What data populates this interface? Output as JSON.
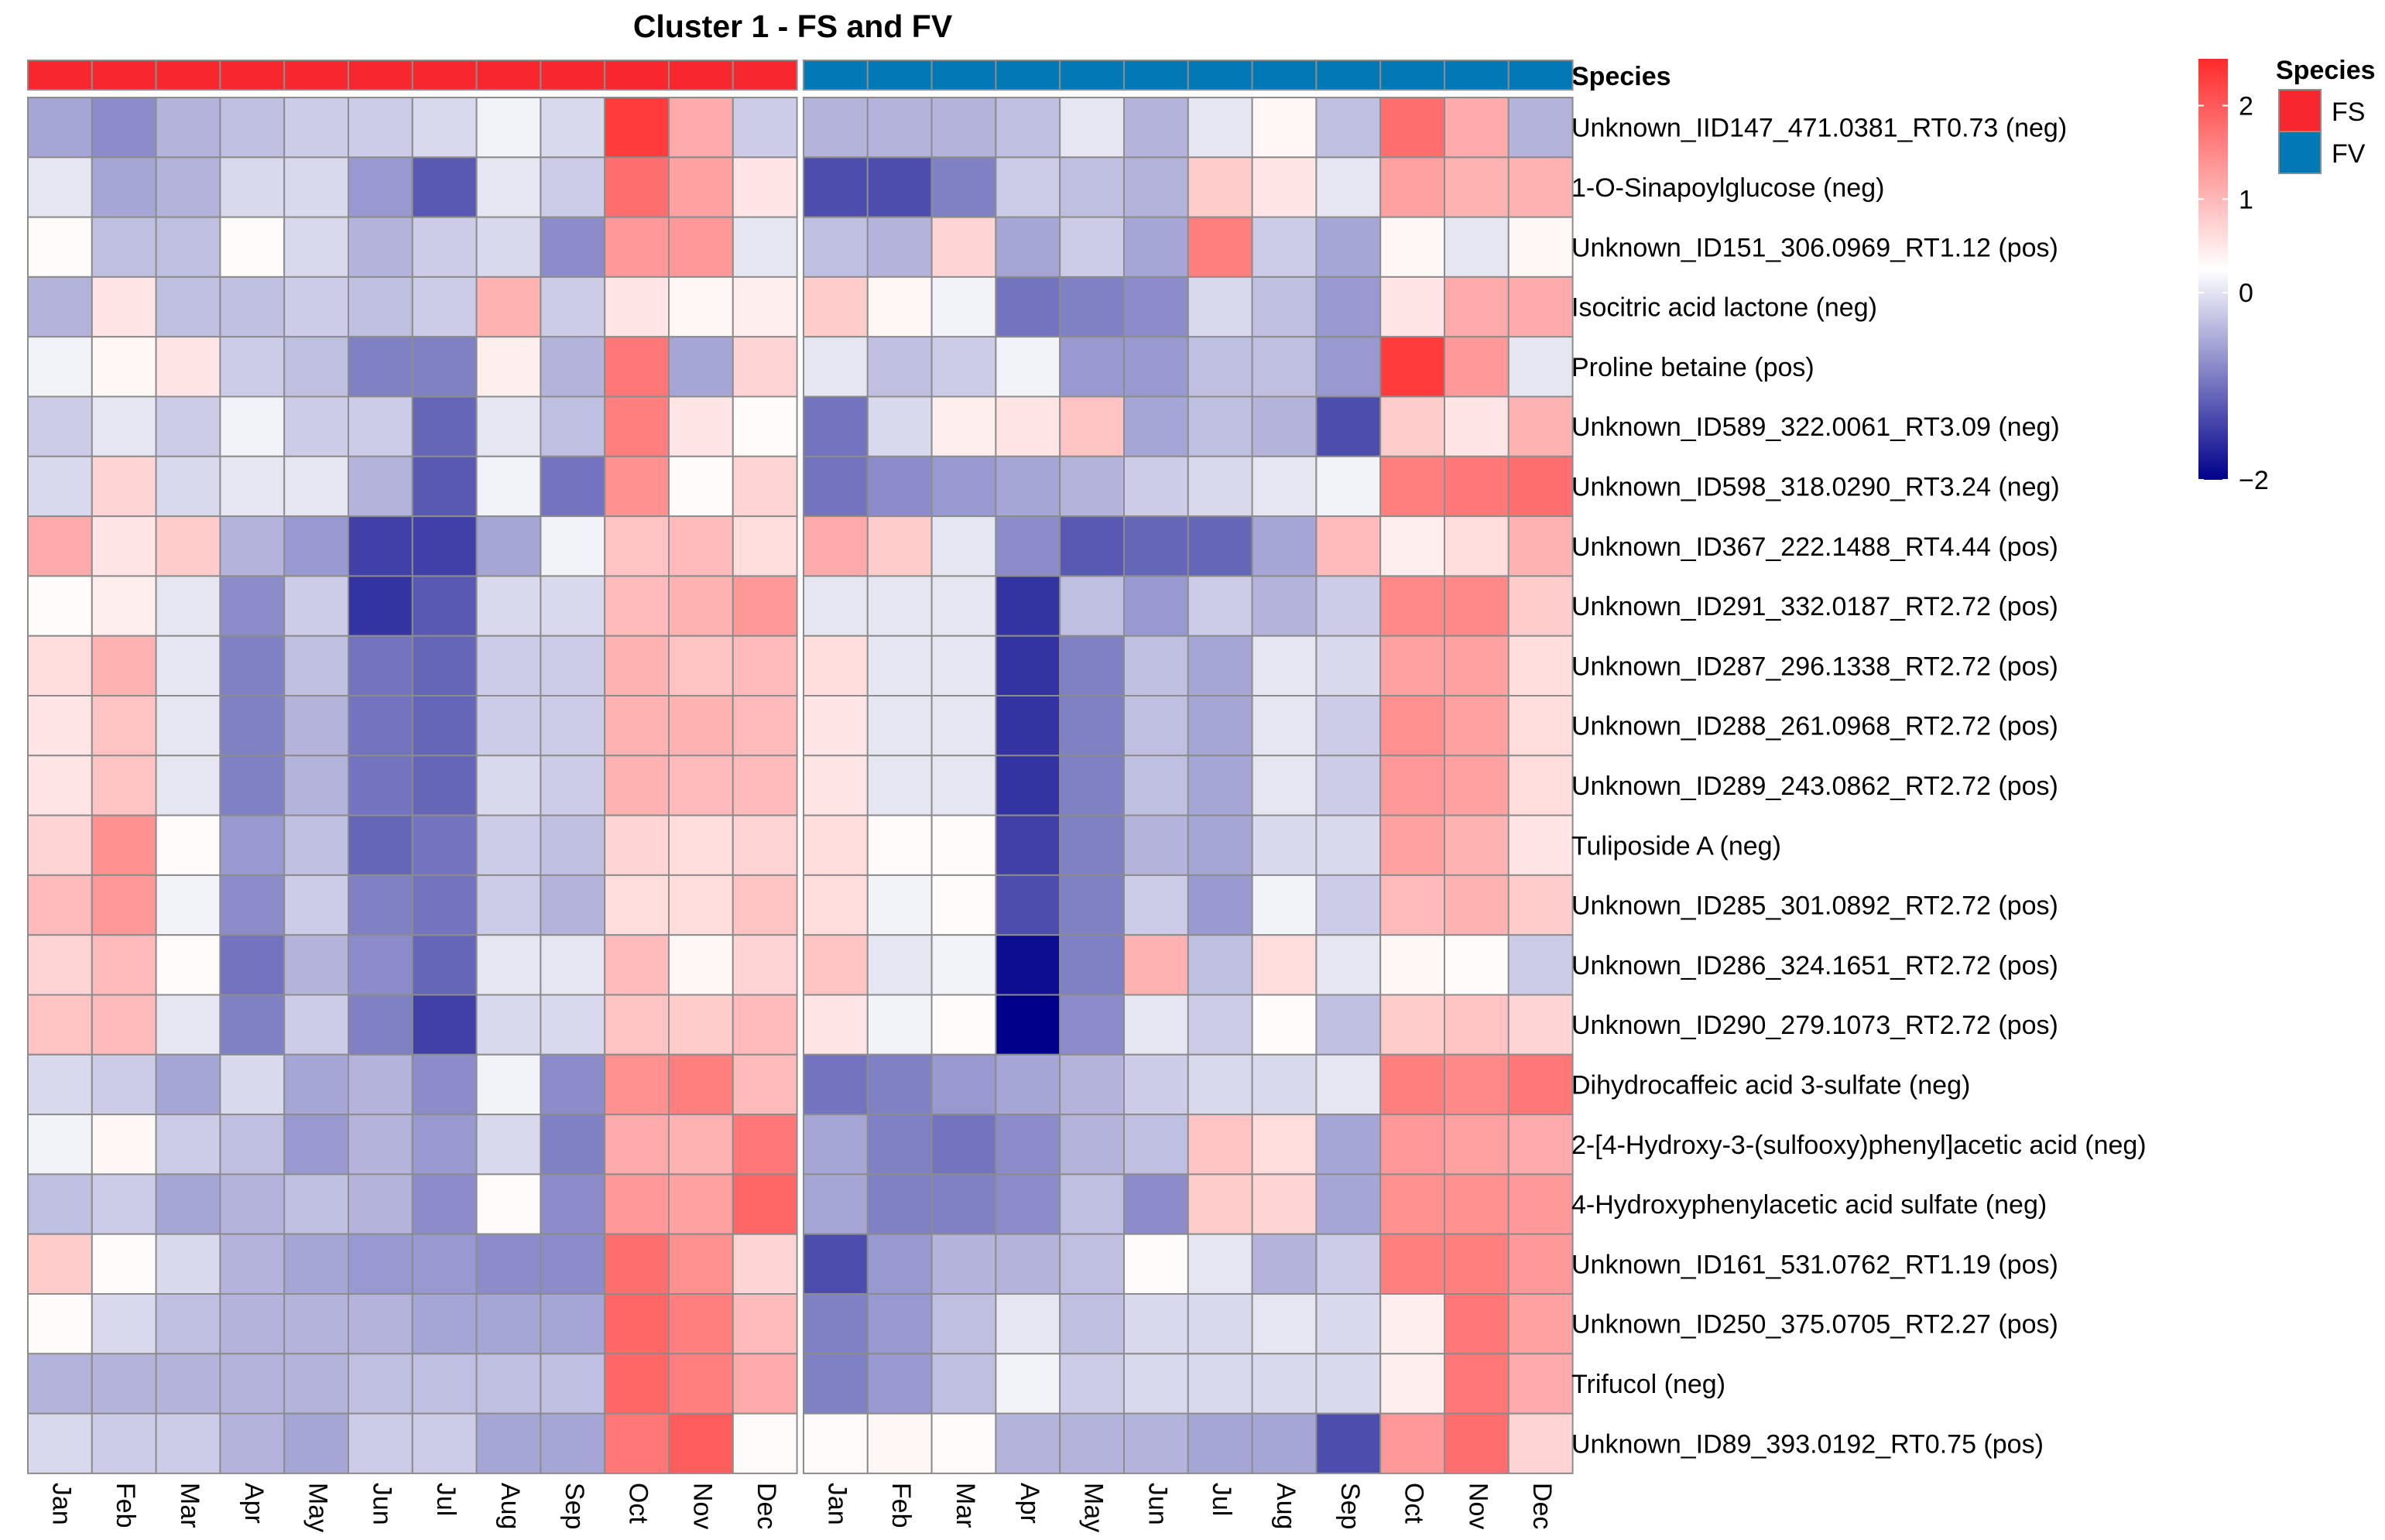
{
  "chart_data": {
    "type": "heatmap",
    "title": "Cluster 1 - FS and FV",
    "annotation_title": "Species",
    "legend": {
      "title": "Species",
      "entries": [
        {
          "label": "FS",
          "color": "#f8262d"
        },
        {
          "label": "FV",
          "color": "#0278b7"
        }
      ],
      "scale_ticks": [
        "2",
        "1",
        "0",
        "−2"
      ],
      "scale_values": [
        2,
        1,
        0,
        -2
      ],
      "scale_range": [
        -2,
        2.5
      ]
    },
    "color_scale": {
      "low": "#00008b",
      "mid": "#ffffff",
      "high": "#ff2a2a",
      "min": -2,
      "max": 2.5
    },
    "groups": [
      {
        "name": "FS",
        "color": "#f8262d",
        "months": [
          "Jan",
          "Feb",
          "Mar",
          "Apr",
          "May",
          "Jun",
          "Jul",
          "Aug",
          "Sep",
          "Oct",
          "Nov",
          "Dec"
        ]
      },
      {
        "name": "FV",
        "color": "#0278b7",
        "months": [
          "Jan",
          "Feb",
          "Mar",
          "Apr",
          "May",
          "Jun",
          "Jul",
          "Aug",
          "Sep",
          "Oct",
          "Nov",
          "Dec"
        ]
      }
    ],
    "rows": [
      {
        "label": "Unknown_IID147_471.0381_RT0.73 (neg)",
        "FS": [
          -0.7,
          -0.9,
          -0.6,
          -0.5,
          -0.4,
          -0.4,
          -0.3,
          -0.1,
          -0.3,
          2.3,
          1.0,
          -0.4
        ],
        "FV": [
          -0.6,
          -0.6,
          -0.6,
          -0.5,
          -0.2,
          -0.6,
          -0.2,
          0.1,
          -0.5,
          1.7,
          1.0,
          -0.6
        ]
      },
      {
        "label": "1-O-Sinapoylglucose (neg)",
        "FS": [
          -0.2,
          -0.7,
          -0.6,
          -0.3,
          -0.3,
          -0.8,
          -1.3,
          -0.2,
          -0.4,
          1.7,
          1.1,
          0.3
        ],
        "FV": [
          -1.4,
          -1.4,
          -1.0,
          -0.4,
          -0.5,
          -0.6,
          0.6,
          0.3,
          -0.2,
          1.1,
          0.9,
          0.9
        ]
      },
      {
        "label": "Unknown_ID151_306.0969_RT1.12 (pos)",
        "FS": [
          0.05,
          -0.5,
          -0.5,
          0.05,
          -0.3,
          -0.6,
          -0.4,
          -0.3,
          -0.9,
          1.2,
          1.2,
          -0.2
        ],
        "FV": [
          -0.5,
          -0.6,
          0.5,
          -0.7,
          -0.4,
          -0.7,
          1.5,
          -0.4,
          -0.7,
          0.1,
          -0.2,
          0.1
        ]
      },
      {
        "label": "Isocitric acid lactone (neg)",
        "FS": [
          -0.6,
          0.3,
          -0.5,
          -0.5,
          -0.4,
          -0.5,
          -0.4,
          0.9,
          -0.4,
          0.3,
          0.1,
          0.2
        ],
        "FV": [
          0.6,
          0.1,
          -0.1,
          -1.1,
          -1.0,
          -0.9,
          -0.3,
          -0.5,
          -0.8,
          0.3,
          1.0,
          1.0
        ]
      },
      {
        "label": "Proline betaine (pos)",
        "FS": [
          -0.1,
          0.1,
          0.3,
          -0.4,
          -0.5,
          -1.0,
          -1.0,
          0.2,
          -0.6,
          1.6,
          -0.7,
          0.5
        ],
        "FV": [
          -0.2,
          -0.5,
          -0.4,
          -0.1,
          -0.8,
          -0.8,
          -0.5,
          -0.5,
          -0.8,
          2.3,
          1.2,
          -0.2
        ]
      },
      {
        "label": "Unknown_ID589_322.0061_RT3.09 (neg)",
        "FS": [
          -0.4,
          -0.2,
          -0.4,
          -0.1,
          -0.4,
          -0.4,
          -1.2,
          -0.2,
          -0.5,
          1.5,
          0.3,
          0.05
        ],
        "FV": [
          -1.1,
          -0.3,
          0.2,
          0.3,
          0.7,
          -0.7,
          -0.5,
          -0.6,
          -1.4,
          0.6,
          0.3,
          0.9
        ]
      },
      {
        "label": "Unknown_ID598_318.0290_RT3.24 (neg)",
        "FS": [
          -0.3,
          0.5,
          -0.3,
          -0.2,
          -0.2,
          -0.6,
          -1.3,
          -0.1,
          -1.1,
          1.3,
          0.05,
          0.5
        ],
        "FV": [
          -1.1,
          -0.9,
          -0.8,
          -0.7,
          -0.6,
          -0.4,
          -0.3,
          -0.2,
          -0.1,
          1.5,
          1.6,
          1.7
        ]
      },
      {
        "label": "Unknown_ID367_222.1488_RT4.44 (pos)",
        "FS": [
          1.0,
          0.3,
          0.6,
          -0.6,
          -0.8,
          -1.5,
          -1.5,
          -0.7,
          -0.1,
          0.7,
          0.8,
          0.4
        ],
        "FV": [
          1.0,
          0.6,
          -0.2,
          -0.9,
          -1.3,
          -1.2,
          -1.2,
          -0.7,
          0.8,
          0.2,
          0.4,
          0.9
        ]
      },
      {
        "label": "Unknown_ID291_332.0187_RT2.72 (pos)",
        "FS": [
          0.05,
          0.2,
          -0.2,
          -0.9,
          -0.4,
          -1.6,
          -1.3,
          -0.3,
          -0.3,
          0.8,
          0.9,
          1.2
        ],
        "FV": [
          -0.2,
          -0.2,
          -0.2,
          -1.6,
          -0.5,
          -0.8,
          -0.4,
          -0.6,
          -0.4,
          1.4,
          1.4,
          0.6
        ]
      },
      {
        "label": "Unknown_ID287_296.1338_RT2.72 (pos)",
        "FS": [
          0.4,
          0.9,
          -0.2,
          -1.0,
          -0.5,
          -1.1,
          -1.2,
          -0.4,
          -0.4,
          0.9,
          0.7,
          0.8
        ],
        "FV": [
          0.4,
          -0.2,
          -0.2,
          -1.6,
          -1.0,
          -0.5,
          -0.7,
          -0.2,
          -0.3,
          1.1,
          1.1,
          0.4
        ]
      },
      {
        "label": "Unknown_ID288_261.0968_RT2.72 (pos)",
        "FS": [
          0.3,
          0.7,
          -0.2,
          -1.0,
          -0.6,
          -1.1,
          -1.2,
          -0.4,
          -0.4,
          0.9,
          0.9,
          0.8
        ],
        "FV": [
          0.3,
          -0.2,
          -0.2,
          -1.6,
          -1.0,
          -0.5,
          -0.7,
          -0.2,
          -0.4,
          1.3,
          1.1,
          0.4
        ]
      },
      {
        "label": "Unknown_ID289_243.0862_RT2.72 (pos)",
        "FS": [
          0.3,
          0.7,
          -0.2,
          -1.0,
          -0.6,
          -1.1,
          -1.2,
          -0.3,
          -0.4,
          0.9,
          0.8,
          0.8
        ],
        "FV": [
          0.3,
          -0.2,
          -0.2,
          -1.6,
          -1.0,
          -0.5,
          -0.7,
          -0.2,
          -0.4,
          1.2,
          1.1,
          0.4
        ]
      },
      {
        "label": "Tuliposide A (neg)",
        "FS": [
          0.5,
          1.3,
          0.05,
          -0.8,
          -0.5,
          -1.2,
          -1.1,
          -0.4,
          -0.5,
          0.5,
          0.4,
          0.5
        ],
        "FV": [
          0.4,
          0.05,
          0.05,
          -1.5,
          -1.0,
          -0.6,
          -0.7,
          -0.3,
          -0.3,
          1.1,
          0.9,
          0.3
        ]
      },
      {
        "label": "Unknown_ID285_301.0892_RT2.72 (pos)",
        "FS": [
          0.8,
          1.2,
          -0.1,
          -0.9,
          -0.4,
          -1.0,
          -1.1,
          -0.4,
          -0.6,
          0.4,
          0.4,
          0.7
        ],
        "FV": [
          0.4,
          -0.1,
          0.05,
          -1.4,
          -1.0,
          -0.4,
          -0.8,
          -0.1,
          -0.4,
          0.8,
          0.9,
          0.6
        ]
      },
      {
        "label": "Unknown_ID286_324.1651_RT2.72 (pos)",
        "FS": [
          0.5,
          0.8,
          0.05,
          -1.1,
          -0.6,
          -0.9,
          -1.2,
          -0.2,
          -0.2,
          0.8,
          0.1,
          0.5
        ],
        "FV": [
          0.7,
          -0.2,
          -0.1,
          -1.9,
          -1.0,
          0.9,
          -0.5,
          0.4,
          -0.2,
          0.1,
          0.05,
          -0.4
        ]
      },
      {
        "label": "Unknown_ID290_279.1073_RT2.72 (pos)",
        "FS": [
          0.7,
          0.8,
          -0.2,
          -1.0,
          -0.4,
          -1.0,
          -1.5,
          -0.3,
          -0.3,
          0.7,
          0.6,
          0.8
        ],
        "FV": [
          0.3,
          -0.1,
          0.05,
          -2.0,
          -0.9,
          -0.2,
          -0.4,
          0.05,
          -0.5,
          0.6,
          0.7,
          0.5
        ]
      },
      {
        "label": "Dihydrocaffeic acid 3-sulfate (neg)",
        "FS": [
          -0.3,
          -0.4,
          -0.7,
          -0.3,
          -0.7,
          -0.6,
          -0.9,
          -0.1,
          -0.9,
          1.3,
          1.5,
          0.8
        ],
        "FV": [
          -1.1,
          -1.0,
          -0.8,
          -0.7,
          -0.6,
          -0.4,
          -0.3,
          -0.3,
          -0.2,
          1.5,
          1.4,
          1.6
        ]
      },
      {
        "label": "2-[4-Hydroxy-3-(sulfooxy)phenyl]acetic acid (neg)",
        "FS": [
          -0.1,
          0.1,
          -0.4,
          -0.5,
          -0.8,
          -0.6,
          -0.8,
          -0.3,
          -1.0,
          1.0,
          0.9,
          1.6
        ],
        "FV": [
          -0.7,
          -1.0,
          -1.1,
          -0.9,
          -0.6,
          -0.5,
          0.7,
          0.4,
          -0.7,
          1.2,
          1.1,
          1.0
        ]
      },
      {
        "label": "4-Hydroxyphenylacetic acid sulfate (neg)",
        "FS": [
          -0.5,
          -0.4,
          -0.7,
          -0.6,
          -0.5,
          -0.6,
          -0.9,
          0.05,
          -0.9,
          1.2,
          1.1,
          1.8
        ],
        "FV": [
          -0.7,
          -1.0,
          -1.0,
          -0.9,
          -0.5,
          -0.9,
          0.6,
          0.5,
          -0.7,
          1.3,
          1.3,
          1.2
        ]
      },
      {
        "label": "Unknown_ID161_531.0762_RT1.19 (pos)",
        "FS": [
          0.6,
          0.05,
          -0.3,
          -0.6,
          -0.7,
          -0.8,
          -0.8,
          -0.9,
          -0.9,
          1.7,
          1.3,
          0.5
        ],
        "FV": [
          -1.4,
          -0.8,
          -0.6,
          -0.6,
          -0.5,
          0.05,
          -0.2,
          -0.6,
          -0.4,
          1.5,
          1.5,
          1.2
        ]
      },
      {
        "label": "Unknown_ID250_375.0705_RT2.27 (pos)",
        "FS": [
          0.05,
          -0.3,
          -0.5,
          -0.6,
          -0.6,
          -0.6,
          -0.7,
          -0.7,
          -0.7,
          1.8,
          1.5,
          0.8
        ],
        "FV": [
          -1.0,
          -0.8,
          -0.5,
          -0.2,
          -0.5,
          -0.3,
          -0.3,
          -0.2,
          -0.3,
          0.2,
          1.6,
          1.1
        ]
      },
      {
        "label": "Trifucol (neg)",
        "FS": [
          -0.6,
          -0.6,
          -0.6,
          -0.6,
          -0.6,
          -0.5,
          -0.5,
          -0.5,
          -0.5,
          1.8,
          1.5,
          1.0
        ],
        "FV": [
          -1.0,
          -0.8,
          -0.5,
          -0.1,
          -0.4,
          -0.3,
          -0.3,
          -0.3,
          -0.3,
          0.2,
          1.6,
          1.0
        ]
      },
      {
        "label": "Unknown_ID89_393.0192_RT0.75 (pos)",
        "FS": [
          -0.3,
          -0.4,
          -0.4,
          -0.6,
          -0.7,
          -0.4,
          -0.4,
          -0.7,
          -0.7,
          1.6,
          1.9,
          0.05
        ],
        "FV": [
          0.05,
          0.1,
          0.05,
          -0.6,
          -0.6,
          -0.6,
          -0.7,
          -0.7,
          -1.4,
          1.2,
          1.7,
          0.5
        ]
      }
    ]
  }
}
